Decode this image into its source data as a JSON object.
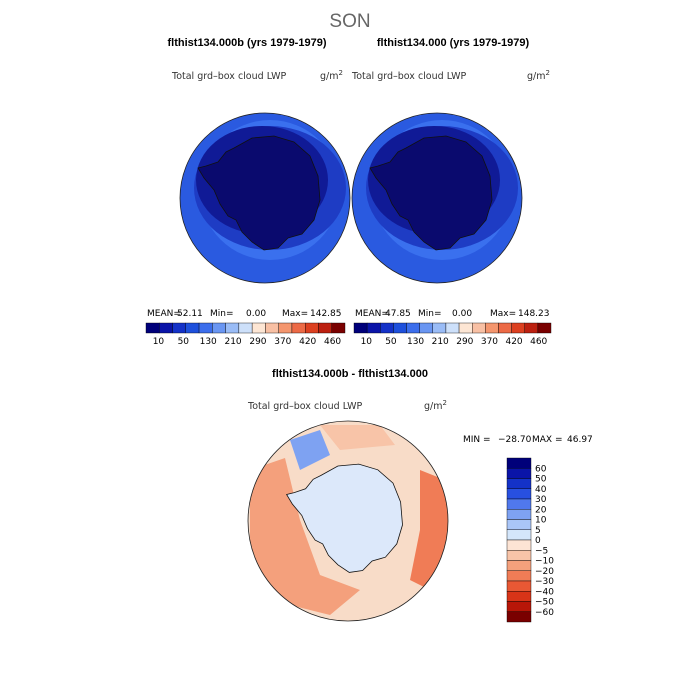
{
  "figure": {
    "title": "SON"
  },
  "panels": [
    {
      "id": "left",
      "case_title": "flthist134.000b (yrs 1979-1979)",
      "variable": "Total grd–box cloud LWP",
      "units_base": "g/m",
      "units_exp": "2",
      "stats": {
        "mean_label": "MEAN=",
        "mean": "52.11",
        "min_label": "Min=",
        "min": "0.00",
        "max_label": "Max=",
        "max": "142.85"
      }
    },
    {
      "id": "right",
      "case_title": "flthist134.000 (yrs 1979-1979)",
      "variable": "Total grd–box cloud LWP",
      "units_base": "g/m",
      "units_exp": "2",
      "stats": {
        "mean_label": "MEAN=",
        "mean": "47.85",
        "min_label": "Min=",
        "min": "0.00",
        "max_label": "Max=",
        "max": "148.23"
      }
    }
  ],
  "colorbar_abs": {
    "colors": [
      "#00007a",
      "#0a14a8",
      "#1432c8",
      "#1e50dc",
      "#3c6eec",
      "#6a96f2",
      "#9abcf6",
      "#cde0fa",
      "#fde6d4",
      "#f8c0a4",
      "#f4966e",
      "#ec6a46",
      "#dc4020",
      "#bc2010",
      "#7a0000"
    ],
    "labels": [
      "10",
      "50",
      "130",
      "210",
      "290",
      "370",
      "420",
      "460"
    ]
  },
  "difference": {
    "title": "flthist134.000b - flthist134.000",
    "variable": "Total grd–box cloud LWP",
    "units_base": "g/m",
    "units_exp": "2",
    "min_label": "MIN =",
    "min": "−28.70",
    "max_label": "MAX =",
    "max": "46.97"
  },
  "colorbar_diff": {
    "colors": [
      "#00007a",
      "#0a14a8",
      "#1432c8",
      "#2850e0",
      "#5078ec",
      "#7ea2f2",
      "#aac6f8",
      "#d4e6fb",
      "#fde4d4",
      "#f8c4a8",
      "#f4a07c",
      "#f07c56",
      "#e85834",
      "#d83418",
      "#b81608",
      "#7a0000"
    ],
    "labels": [
      "60",
      "50",
      "40",
      "30",
      "20",
      "10",
      "5",
      "0",
      "−5",
      "−10",
      "−20",
      "−30",
      "−40",
      "−50",
      "−60"
    ]
  },
  "colors": {
    "coast": "#111111",
    "outline": "#222222",
    "antarctica_abs": "#0a0a6e",
    "ring_dark": "#101a96",
    "ring_mid": "#1e3cc4",
    "ocean": "#2a5ae0",
    "ocean_light": "#3a70ee",
    "diff_base": "#f8dcc8",
    "diff_land": "#dce8fa"
  }
}
